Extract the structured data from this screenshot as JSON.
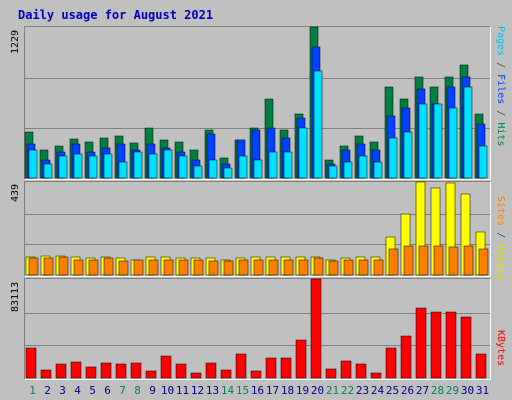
{
  "chart_data": [
    {
      "type": "bar",
      "title": "Daily usage for August 2021",
      "categories": [
        "1",
        "2",
        "3",
        "4",
        "5",
        "6",
        "7",
        "8",
        "9",
        "10",
        "11",
        "12",
        "13",
        "14",
        "15",
        "16",
        "17",
        "18",
        "19",
        "20",
        "21",
        "22",
        "23",
        "24",
        "25",
        "26",
        "27",
        "28",
        "29",
        "30",
        "31"
      ],
      "weekend_days": [
        "1",
        "7",
        "8",
        "14",
        "15",
        "21",
        "22",
        "28",
        "29"
      ],
      "max_label": "1229",
      "ylim": [
        0,
        1229
      ],
      "legend": [
        "Pages",
        "Files",
        "Hits"
      ],
      "series": [
        {
          "name": "Hits",
          "color": "#008040",
          "values": [
            378,
            229,
            262,
            319,
            295,
            328,
            344,
            287,
            410,
            311,
            295,
            229,
            393,
            164,
            311,
            410,
            639,
            393,
            524,
            1229,
            147,
            262,
            344,
            295,
            737,
            639,
            819,
            737,
            819,
            917,
            524
          ]
        },
        {
          "name": "Files",
          "color": "#0040ff",
          "values": [
            278,
            147,
            213,
            278,
            213,
            246,
            278,
            229,
            278,
            246,
            213,
            147,
            360,
            115,
            311,
            393,
            410,
            328,
            492,
            1065,
            115,
            229,
            278,
            229,
            508,
            573,
            721,
            606,
            737,
            819,
            442
          ]
        },
        {
          "name": "Pages",
          "color": "#00e0ff",
          "values": [
            229,
            115,
            180,
            197,
            180,
            197,
            131,
            213,
            197,
            229,
            180,
            98,
            147,
            82,
            180,
            147,
            213,
            213,
            410,
            868,
            98,
            131,
            180,
            131,
            328,
            377,
            606,
            606,
            573,
            737,
            262
          ]
        }
      ]
    },
    {
      "type": "bar",
      "max_label": "439",
      "ylim": [
        0,
        439
      ],
      "legend": [
        "Sites",
        "Visits"
      ],
      "series": [
        {
          "name": "Visits",
          "color": "#ffff00",
          "values": [
            84,
            90,
            90,
            84,
            78,
            84,
            78,
            72,
            84,
            84,
            78,
            78,
            78,
            72,
            78,
            84,
            84,
            84,
            84,
            84,
            72,
            78,
            84,
            84,
            180,
            287,
            439,
            413,
            433,
            380,
            203
          ]
        },
        {
          "name": "Sites",
          "color": "#ff8000",
          "values": [
            78,
            78,
            84,
            72,
            72,
            78,
            66,
            72,
            72,
            72,
            72,
            72,
            66,
            66,
            72,
            72,
            72,
            72,
            72,
            78,
            66,
            72,
            72,
            72,
            124,
            136,
            136,
            136,
            130,
            136,
            124
          ]
        }
      ]
    },
    {
      "type": "bar",
      "max_label": "83113",
      "ylim": [
        0,
        83113
      ],
      "legend": [
        "KBytes"
      ],
      "series": [
        {
          "name": "KBytes",
          "color": "#ff0000",
          "values": [
            25600,
            6400,
            11500,
            13500,
            9000,
            12800,
            11500,
            12800,
            5800,
            18500,
            11500,
            3800,
            12800,
            6400,
            20500,
            5800,
            16700,
            16700,
            32000,
            83113,
            7700,
            14100,
            11500,
            3800,
            25600,
            35300,
            59000,
            55000,
            55000,
            51200,
            20500
          ]
        }
      ]
    }
  ]
}
